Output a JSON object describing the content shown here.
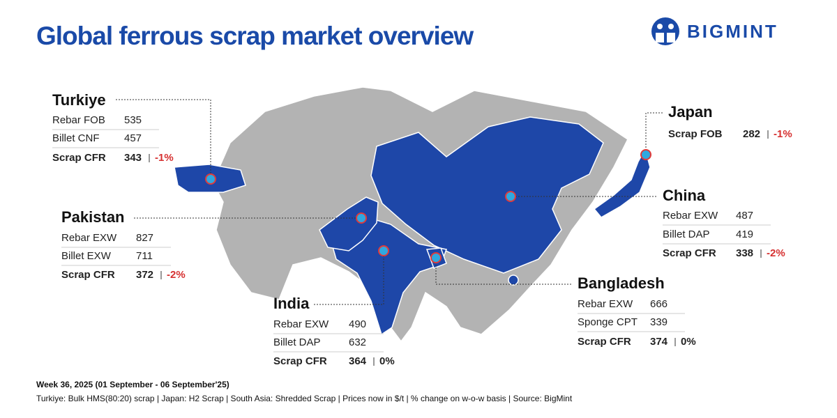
{
  "header": {
    "title": "Global ferrous scrap market overview",
    "logo": "BIGMINT"
  },
  "regions": [
    {
      "name": "Turkiye",
      "rows": [
        {
          "label": "Rebar FOB",
          "price": 535
        },
        {
          "label": "Billet CNF",
          "price": 457
        },
        {
          "label": "Scrap CFR",
          "price": 343,
          "change": "-1%"
        }
      ]
    },
    {
      "name": "Pakistan",
      "rows": [
        {
          "label": "Rebar EXW",
          "price": 827
        },
        {
          "label": "Billet EXW",
          "price": 711
        },
        {
          "label": "Scrap CFR",
          "price": 372,
          "change": "-2%"
        }
      ]
    },
    {
      "name": "India",
      "rows": [
        {
          "label": "Rebar EXW",
          "price": 490
        },
        {
          "label": "Billet DAP",
          "price": 632
        },
        {
          "label": "Scrap CFR",
          "price": 364,
          "change": "0%"
        }
      ]
    },
    {
      "name": "Bangladesh",
      "rows": [
        {
          "label": "Rebar EXW",
          "price": 666
        },
        {
          "label": "Sponge CPT",
          "price": 339
        },
        {
          "label": "Scrap CFR",
          "price": 374,
          "change": "0%"
        }
      ]
    },
    {
      "name": "China",
      "rows": [
        {
          "label": "Rebar EXW",
          "price": 487
        },
        {
          "label": "Billet DAP",
          "price": 419
        },
        {
          "label": "Scrap CFR",
          "price": 338,
          "change": "-2%"
        }
      ]
    },
    {
      "name": "Japan",
      "rows": [
        {
          "label": "Scrap FOB",
          "price": 282,
          "change": "-1%"
        }
      ]
    }
  ],
  "footer": {
    "period": "Week 36, 2025 (01 September - 06 September'25)",
    "notes": "Turkiye: Bulk HMS(80:20) scrap | Japan: H2 Scrap | South Asia: Shredded Scrap  |  Prices now in $/t  |  % change on w-o-w basis  |  Source: BigMint"
  }
}
